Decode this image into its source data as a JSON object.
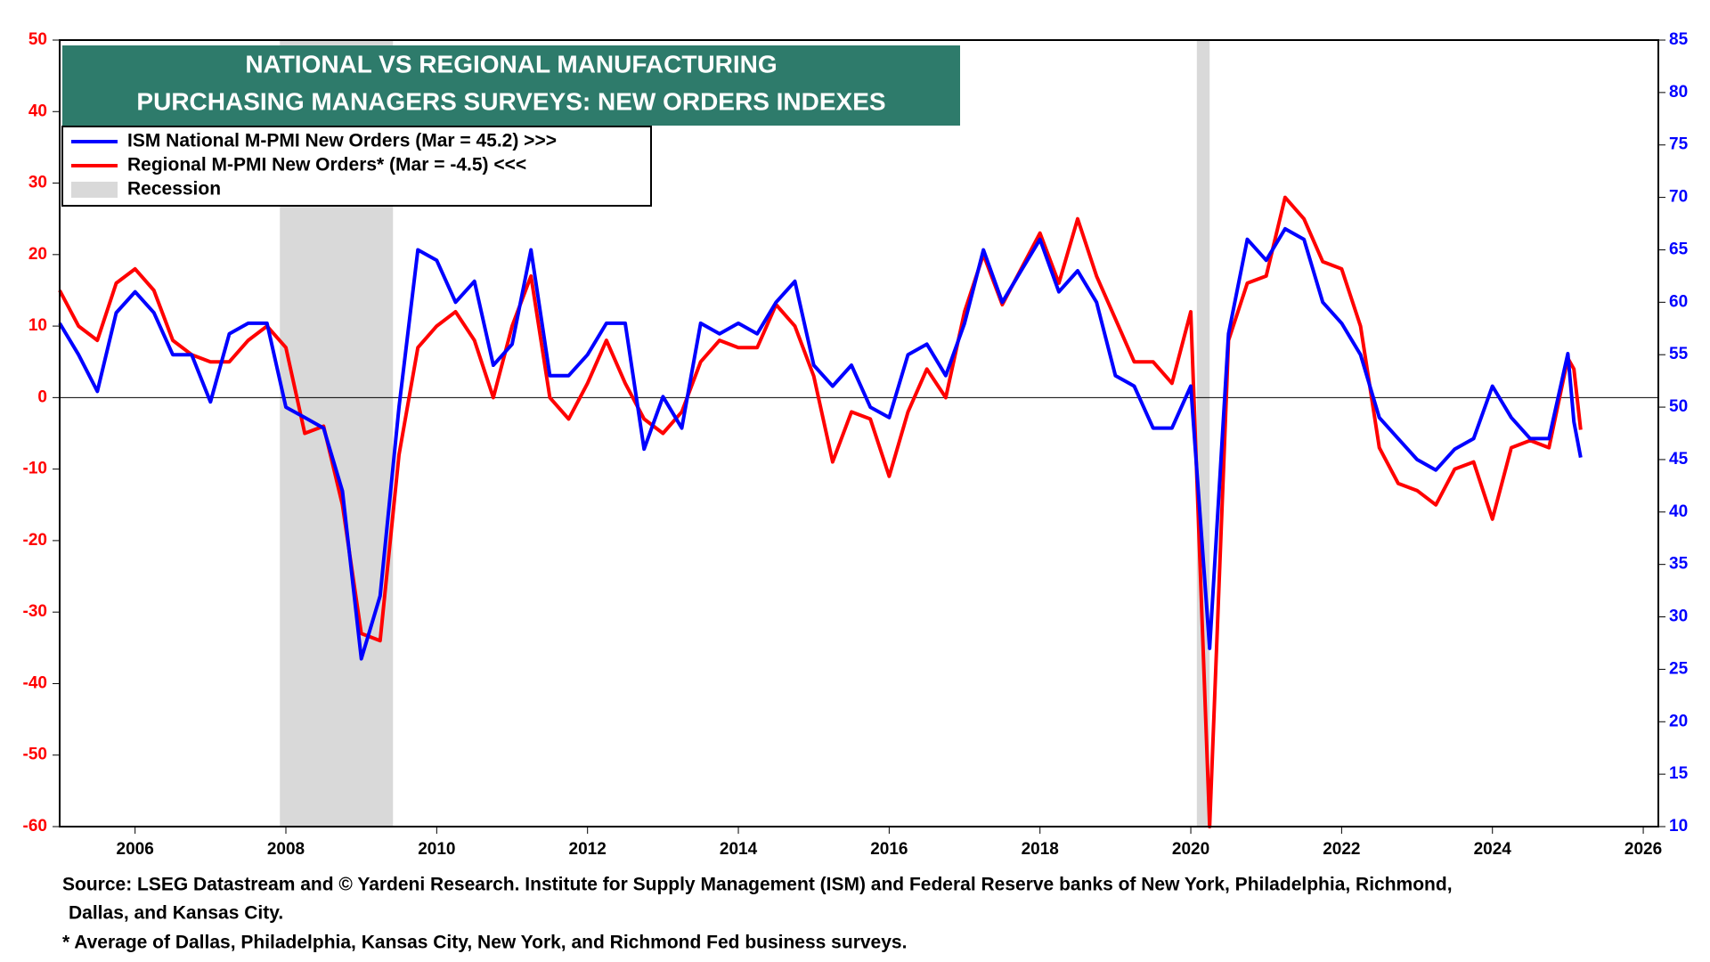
{
  "chart_data": {
    "type": "line",
    "title": [
      "NATIONAL VS REGIONAL MANUFACTURING",
      "PURCHASING MANAGERS SURVEYS: NEW ORDERS INDEXES"
    ],
    "footnotes": [
      "Source: LSEG Datastream and © Yardeni Research. Institute for Supply Management (ISM) and Federal Reserve banks of New York, Philadelphia, Richmond,",
      "Dallas, and Kansas City.",
      "* Average of Dallas, Philadelphia, Kansas City, New York, and Richmond Fed business surveys."
    ],
    "recession_label": "Recession",
    "recession_color": "#d9d9d9",
    "recessions": [
      [
        2007.92,
        2009.42
      ],
      [
        2020.08,
        2020.25
      ]
    ],
    "xlim": [
      2005,
      2026.2
    ],
    "xticks": [
      2006,
      2008,
      2010,
      2012,
      2014,
      2016,
      2018,
      2020,
      2022,
      2024,
      2026
    ],
    "ylim": [
      -60,
      50
    ],
    "yticks": [
      -60,
      -50,
      -40,
      -30,
      -20,
      -10,
      0,
      10,
      20,
      30,
      40,
      50
    ],
    "y2lim": [
      10,
      85
    ],
    "y2ticks": [
      10,
      15,
      20,
      25,
      30,
      35,
      40,
      45,
      50,
      55,
      60,
      65,
      70,
      75,
      80,
      85
    ],
    "x": [
      2005,
      2005.25,
      2005.5,
      2005.75,
      2006,
      2006.25,
      2006.5,
      2006.75,
      2007,
      2007.25,
      2007.5,
      2007.75,
      2008,
      2008.25,
      2008.5,
      2008.75,
      2009,
      2009.25,
      2009.5,
      2009.75,
      2010,
      2010.25,
      2010.5,
      2010.75,
      2011,
      2011.25,
      2011.5,
      2011.75,
      2012,
      2012.25,
      2012.5,
      2012.75,
      2013,
      2013.25,
      2013.5,
      2013.75,
      2014,
      2014.25,
      2014.5,
      2014.75,
      2015,
      2015.25,
      2015.5,
      2015.75,
      2016,
      2016.25,
      2016.5,
      2016.75,
      2017,
      2017.25,
      2017.5,
      2017.75,
      2018,
      2018.25,
      2018.5,
      2018.75,
      2019,
      2019.25,
      2019.5,
      2019.75,
      2020,
      2020.25,
      2020.5,
      2020.75,
      2021,
      2021.25,
      2021.5,
      2021.75,
      2022,
      2022.25,
      2022.5,
      2022.75,
      2023,
      2023.25,
      2023.5,
      2023.75,
      2024,
      2024.25,
      2024.5,
      2024.75,
      2025,
      2025.08,
      2025.17
    ],
    "series": [
      {
        "name": "ISM National M-PMI New Orders (Mar = 45.2) >>>",
        "color": "#0000ff",
        "axis": "y2",
        "values": [
          58,
          55,
          51.5,
          59,
          61,
          59,
          55,
          55,
          50.5,
          57,
          58,
          58,
          50,
          49,
          48,
          42,
          26,
          32,
          50,
          65,
          64,
          60,
          62,
          54,
          56,
          65,
          53,
          53,
          55,
          58,
          58,
          46,
          51,
          48,
          58,
          57,
          58,
          57,
          60,
          62,
          54,
          52,
          54,
          50,
          49,
          55,
          56,
          53,
          58,
          65,
          60,
          63,
          66,
          61,
          63,
          60,
          53,
          52,
          48,
          48,
          52,
          27,
          57,
          66,
          64,
          67,
          66,
          60,
          58,
          55,
          49,
          47,
          45,
          44,
          46,
          47,
          52,
          49,
          47,
          47,
          55.1,
          48.6,
          45.2
        ]
      },
      {
        "name": "Regional M-PMI New Orders* (Mar = -4.5) <<<",
        "color": "#ff0000",
        "values": [
          15,
          10,
          8,
          16,
          18,
          15,
          8,
          6,
          5,
          5,
          8,
          10,
          7,
          -5,
          -4,
          -15,
          -33,
          -34,
          -8,
          7,
          10,
          12,
          8,
          0,
          10,
          17,
          0,
          -3,
          2,
          8,
          2,
          -3,
          -5,
          -2,
          5,
          8,
          7,
          7,
          13,
          10,
          3,
          -9,
          -2,
          -3,
          -11,
          -2,
          4,
          0,
          12,
          20,
          13,
          18,
          23,
          16,
          25,
          17,
          11,
          5,
          5,
          2,
          12,
          -60,
          8,
          16,
          17,
          28,
          25,
          19,
          18,
          10,
          -7,
          -12,
          -13,
          -15,
          -10,
          -9,
          -17,
          -7,
          -6,
          -7,
          5.5,
          4,
          -4.5
        ]
      }
    ]
  }
}
